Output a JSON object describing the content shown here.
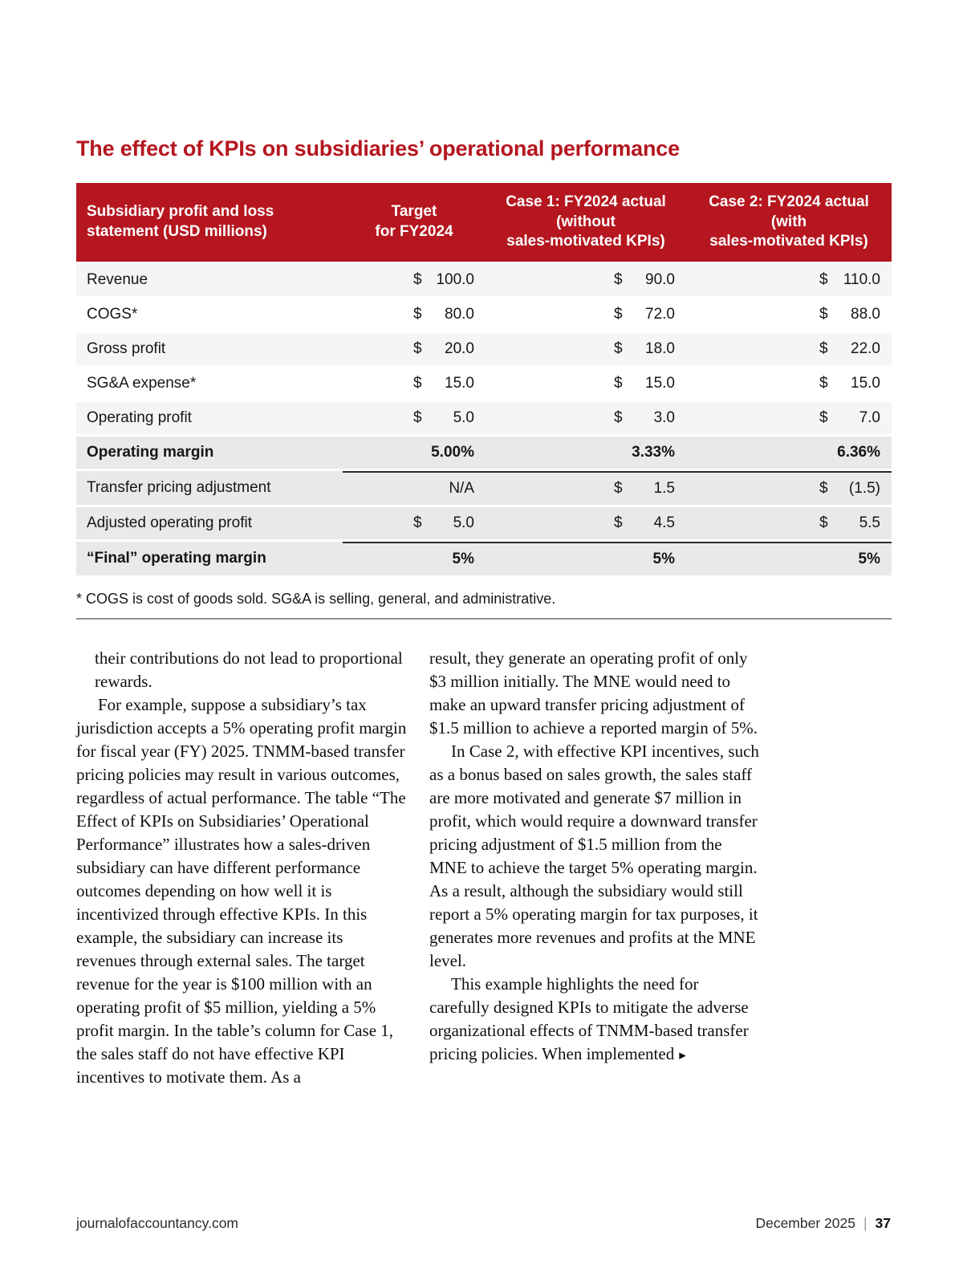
{
  "colors": {
    "accent": "#b5161f",
    "row_gray": "#e9e9e9",
    "row_light": "#f5f5f5",
    "rule_dark": "#2b2b2b"
  },
  "article": {
    "table_title": "The effect of KPIs on subsidiaries’ operational performance",
    "footnote": "* COGS is cost of goods sold. SG&A is selling, general, and administrative.",
    "continuation_marker": "▸",
    "body": {
      "left_paragraphs": [
        {
          "text": "their contributions do not lead to proportional rewards.",
          "hang": true
        },
        {
          "text": "For example, suppose a subsidiary’s tax jurisdiction accepts a 5% operating profit margin for fiscal year (FY) 2025. TNMM-based transfer pricing policies may result in various outcomes, regardless of actual performance. The table “The Effect of KPIs on Subsidiaries’ Operational Performance” illustrates how a sales-driven subsidiary can have different performance outcomes depending on how well it is incentivized through effective KPIs. In this example, the subsidiary can increase its revenues through external sales. The target revenue for the year is $100 million with an operating profit of $5 million, yielding a 5% profit margin. In the table’s column for Case 1, the sales staff do not have effective KPI incentives to motivate them. As a",
          "indent": true
        }
      ],
      "right_paragraphs": [
        {
          "text": "result, they generate an operating profit of only $3 million initially. The MNE would need to make an upward transfer pricing adjustment of $1.5 million to achieve a reported margin of 5%."
        },
        {
          "text": "In Case 2, with effective KPI incentives, such as a bonus based on sales growth, the sales staff are more motivated and generate $7 million in profit, which would require a downward transfer pricing adjustment of $1.5 million from the MNE to achieve the target 5% operating margin. As a result, although the subsidiary would still report a 5% operating margin for tax purposes, it generates more revenues and profits at the MNE level.",
          "indent": true
        },
        {
          "text": "This example highlights the need for carefully designed KPIs to mitigate the adverse organizational effects of TNMM-based transfer pricing policies. When implemented",
          "indent": true,
          "marker": true
        }
      ]
    },
    "footer": {
      "site": "journalofaccountancy.com",
      "issue": "December 2025",
      "separator": "|",
      "page_number": "37"
    }
  },
  "chart_data": {
    "type": "table",
    "title": "The effect of KPIs on subsidiaries’ operational performance",
    "units": "USD millions",
    "columns": [
      "Subsidiary profit and loss\nstatement (USD millions)",
      "Target\nfor FY2024",
      "Case 1: FY2024 actual\n(without\nsales-motivated KPIs)",
      "Case 2: FY2024 actual\n(with\nsales-motivated KPIs)"
    ],
    "rows": [
      {
        "label": "Revenue",
        "values": [
          "$ 100.0",
          "$ 90.0",
          "$ 110.0"
        ]
      },
      {
        "label": "COGS*",
        "values": [
          "$ 80.0",
          "$ 72.0",
          "$ 88.0"
        ]
      },
      {
        "label": "Gross profit",
        "values": [
          "$ 20.0",
          "$ 18.0",
          "$ 22.0"
        ]
      },
      {
        "label": "SG&A expense*",
        "values": [
          "$ 15.0",
          "$ 15.0",
          "$ 15.0"
        ]
      },
      {
        "label": "Operating profit",
        "values": [
          "$ 5.0",
          "$ 3.0",
          "$ 7.0"
        ]
      },
      {
        "label": "Operating margin",
        "values": [
          "5.00%",
          "3.33%",
          "6.36%"
        ],
        "bold": true
      },
      {
        "label": "Transfer pricing adjustment",
        "values": [
          "N/A",
          "$ 1.5",
          "$ (1.5)"
        ],
        "topline": true
      },
      {
        "label": "Adjusted operating profit",
        "values": [
          "$ 5.0",
          "$ 4.5",
          "$ 5.5"
        ]
      },
      {
        "label": "“Final” operating margin",
        "values": [
          "5%",
          "5%",
          "5%"
        ],
        "bold": true,
        "topline": true
      }
    ]
  }
}
